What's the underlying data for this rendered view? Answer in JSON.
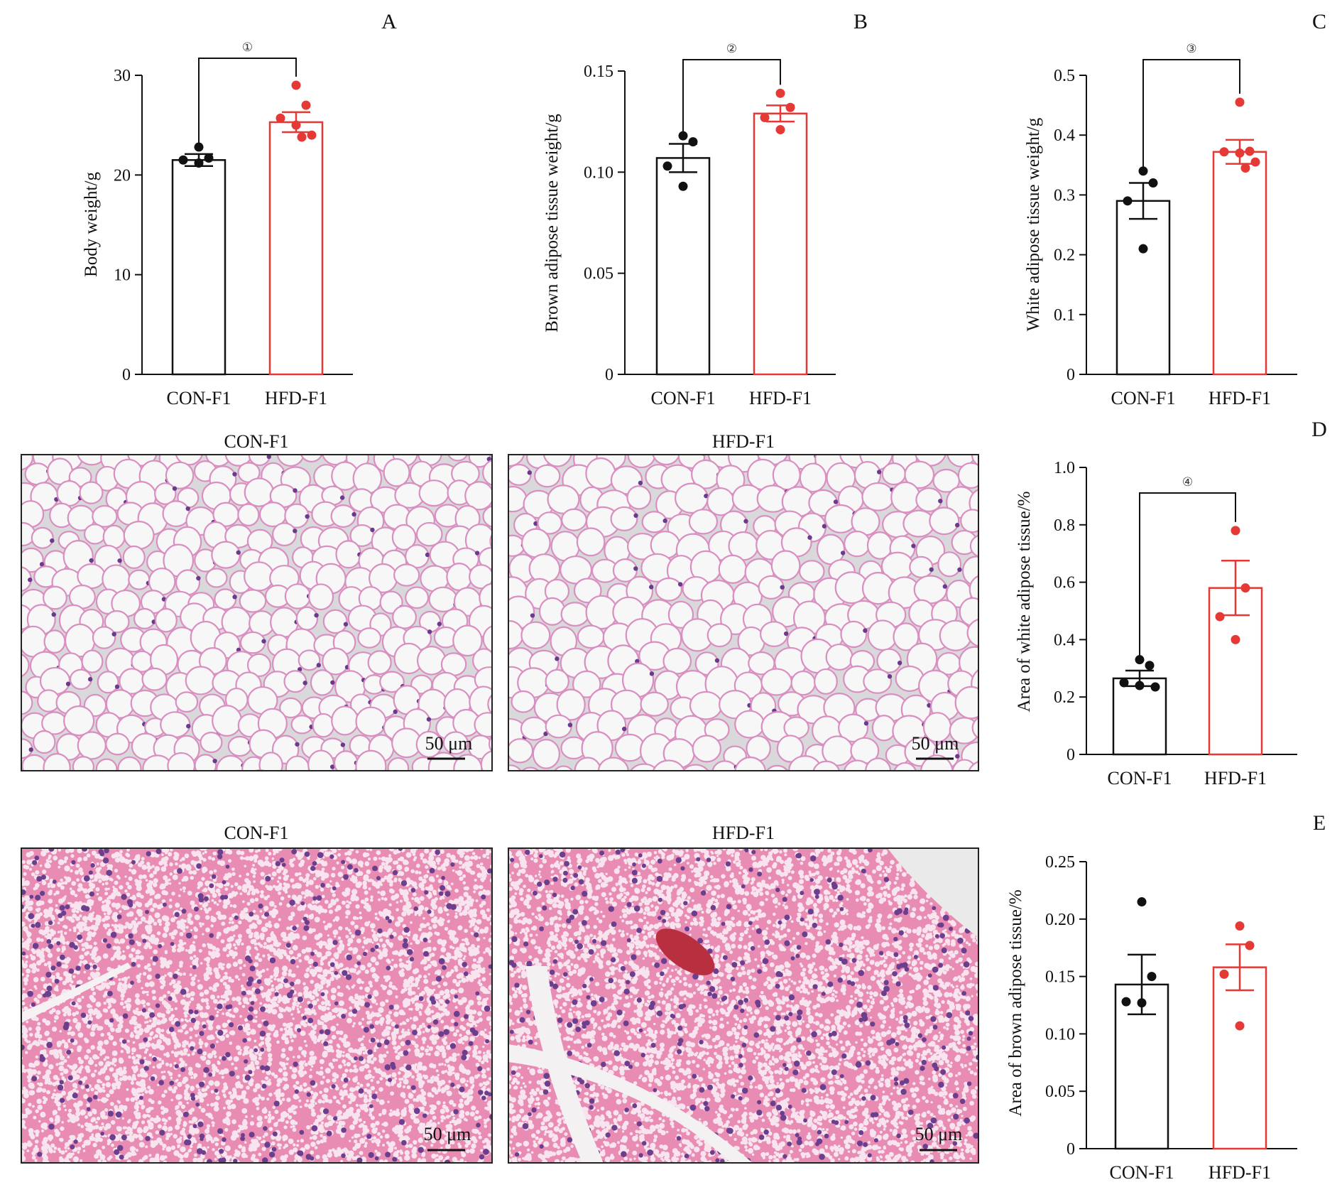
{
  "colors": {
    "con": "#111111",
    "hfd": "#e53935",
    "white_adipose_bg": "#d9d9dc",
    "white_adipose_membrane": "#d98fc0",
    "white_adipose_nucleus": "#6a3a8c",
    "brown_adipose_bg": "#e98cb3",
    "brown_adipose_vacuole": "#f7e4ee",
    "brown_adipose_nucleus": "#6b3e8e"
  },
  "chart_data": [
    {
      "id": "A",
      "type": "bar",
      "panel_label": "A",
      "ylabel": "Body weight/g",
      "ylim": [
        0,
        30
      ],
      "yticks": [
        "0",
        "10",
        "20",
        "30"
      ],
      "categories": [
        "CON-F1",
        "HFD-F1"
      ],
      "means": [
        21.5,
        25.3
      ],
      "sem": [
        0.6,
        1.0
      ],
      "points": [
        [
          22.8,
          21.7,
          21.5,
          21.2
        ],
        [
          29.0,
          27.0,
          25.7,
          25.0,
          24.0,
          23.8
        ]
      ],
      "significance": {
        "label": "①"
      }
    },
    {
      "id": "B",
      "type": "bar",
      "panel_label": "B",
      "ylabel": "Brown adipose tissue weight/g",
      "ylim": [
        0,
        0.15
      ],
      "yticks": [
        "0",
        "0.05",
        "0.10",
        "0.15"
      ],
      "categories": [
        "CON-F1",
        "HFD-F1"
      ],
      "means": [
        0.107,
        0.129
      ],
      "sem": [
        0.007,
        0.004
      ],
      "points": [
        [
          0.118,
          0.115,
          0.103,
          0.093
        ],
        [
          0.139,
          0.132,
          0.127,
          0.121
        ]
      ],
      "significance": {
        "label": "②"
      }
    },
    {
      "id": "C",
      "type": "bar",
      "panel_label": "C",
      "ylabel": "White adipose tissue weight/g",
      "ylim": [
        0,
        0.5
      ],
      "yticks": [
        "0",
        "0.1",
        "0.2",
        "0.3",
        "0.4",
        "0.5"
      ],
      "categories": [
        "CON-F1",
        "HFD-F1"
      ],
      "means": [
        0.29,
        0.372
      ],
      "sem": [
        0.03,
        0.02
      ],
      "points": [
        [
          0.34,
          0.32,
          0.29,
          0.21
        ],
        [
          0.455,
          0.373,
          0.372,
          0.37,
          0.355,
          0.345
        ]
      ],
      "significance": {
        "label": "③"
      }
    },
    {
      "id": "D",
      "type": "bar",
      "panel_label": "D",
      "ylabel": "Area of white adipose tissue/%",
      "ylim": [
        0,
        1.0
      ],
      "yticks": [
        "0",
        "0.2",
        "0.4",
        "0.6",
        "0.8",
        "1.0"
      ],
      "categories": [
        "CON-F1",
        "HFD-F1"
      ],
      "means": [
        0.265,
        0.58
      ],
      "sem": [
        0.027,
        0.095
      ],
      "points": [
        [
          0.33,
          0.31,
          0.25,
          0.24,
          0.235
        ],
        [
          0.78,
          0.58,
          0.48,
          0.4
        ]
      ],
      "significance": {
        "label": "④"
      }
    },
    {
      "id": "E",
      "type": "bar",
      "panel_label": "E",
      "ylabel": "Area of  brown adipose tissue/%",
      "ylim": [
        0,
        0.25
      ],
      "yticks": [
        "0",
        "0.05",
        "0.10",
        "0.15",
        "0.20",
        "0.25"
      ],
      "categories": [
        "CON-F1",
        "HFD-F1"
      ],
      "means": [
        0.143,
        0.158
      ],
      "sem": [
        0.026,
        0.02
      ],
      "points": [
        [
          0.215,
          0.15,
          0.128,
          0.127
        ],
        [
          0.194,
          0.177,
          0.152,
          0.107
        ]
      ],
      "significance": null
    }
  ],
  "micrographs": {
    "white_adipose": {
      "con_title": "CON-F1",
      "hfd_title": "HFD-F1",
      "con_scale": "50 μm",
      "hfd_scale": "50 μm"
    },
    "brown_adipose": {
      "con_title": "CON-F1",
      "hfd_title": "HFD-F1",
      "con_scale": "50 μm",
      "hfd_scale": "50 μm"
    }
  }
}
